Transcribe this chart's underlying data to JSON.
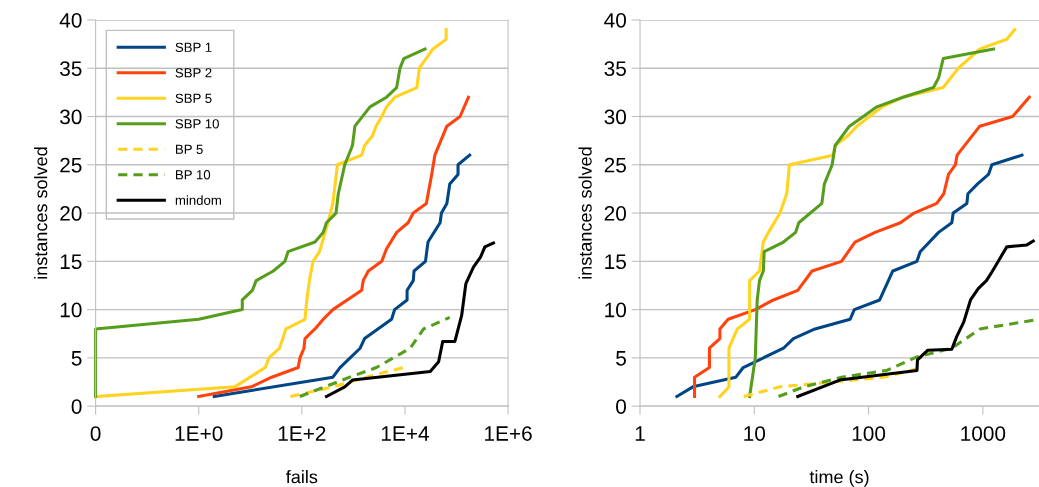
{
  "chart_data": [
    {
      "type": "line",
      "xlabel": "fails",
      "ylabel": "instances solved",
      "log": "x",
      "xlim": [
        0.01,
        1000000
      ],
      "xticks": [
        {
          "value": 0.01,
          "label": "0"
        },
        {
          "value": 1,
          "label": "1E+0"
        },
        {
          "value": 100,
          "label": "1E+2"
        },
        {
          "value": 10000,
          "label": "1E+4"
        },
        {
          "value": 1000000,
          "label": "1E+6"
        }
      ],
      "ylim": [
        0,
        40
      ],
      "yticks": [
        0,
        5,
        10,
        15,
        20,
        25,
        30,
        35,
        40
      ],
      "grid": "y",
      "legend": "top left",
      "marker": "none",
      "series": [
        {
          "name": "SBP 1",
          "color": "#004586",
          "line_style": "solid",
          "x": [
            2,
            400,
            550,
            1350,
            1650,
            5500,
            6300,
            11000,
            11000,
            14500,
            15000,
            25000,
            28000,
            48000,
            51000,
            65000,
            74000,
            107000,
            107000,
            180000
          ],
          "values": [
            1,
            3,
            4,
            6,
            7,
            9,
            10,
            11,
            12,
            13,
            14,
            15,
            17,
            19,
            20,
            21,
            23,
            24,
            25,
            26
          ]
        },
        {
          "name": "SBP 2",
          "color": "#ff420e",
          "line_style": "solid",
          "x": [
            1,
            10.5,
            26,
            85,
            92,
            110,
            115,
            180,
            260,
            400,
            1450,
            1550,
            1950,
            3550,
            4400,
            6900,
            11500,
            14500,
            26000,
            33000,
            38000,
            65000,
            117000,
            170000
          ],
          "values": [
            1,
            2,
            3,
            4,
            5,
            6,
            7,
            8,
            9,
            10,
            12,
            13,
            14,
            15,
            16.3,
            18,
            19,
            20,
            21,
            24,
            26,
            29,
            30,
            32
          ]
        },
        {
          "name": "SBP 5",
          "color": "#ffd320",
          "line_style": "solid",
          "x": [
            0.01,
            5,
            19.5,
            23,
            37,
            49,
            115,
            125,
            140,
            165,
            220,
            250,
            320,
            400,
            490,
            1450,
            1650,
            2350,
            2750,
            3550,
            4400,
            6400,
            17000,
            19000,
            35000,
            63000,
            63000
          ],
          "values": [
            1,
            2,
            4,
            5,
            6,
            8,
            9,
            11,
            13,
            15,
            16,
            17,
            19,
            21,
            25,
            26,
            27,
            28,
            29,
            30,
            31,
            32,
            33,
            35,
            37,
            38,
            39
          ]
        },
        {
          "name": "SBP 10",
          "color": "#579d1c",
          "line_style": "solid",
          "x": [
            0.01,
            0.01,
            1,
            7,
            7,
            11,
            13,
            28,
            47,
            54,
            180,
            260,
            300,
            460,
            510,
            680,
            960,
            1070,
            2100,
            4400,
            6900,
            8000,
            9500,
            24500
          ],
          "values": [
            1,
            8,
            9,
            10,
            11,
            12,
            13,
            14,
            15,
            16,
            17,
            18,
            19,
            20,
            22,
            25,
            27,
            29,
            31,
            32,
            33,
            35,
            36,
            37
          ]
        },
        {
          "name": "BP 5",
          "color": "#ffd320",
          "line_style": "dashed",
          "x": [
            60,
            400,
            1800,
            9300
          ],
          "values": [
            1,
            2,
            3,
            4
          ]
        },
        {
          "name": "BP 10",
          "color": "#579d1c",
          "line_style": "dashed",
          "x": [
            91,
            850,
            2800,
            12600,
            23000,
            74000
          ],
          "values": [
            1,
            3,
            4,
            6,
            8,
            9.2
          ]
        },
        {
          "name": "mindom",
          "color": "#000000",
          "line_style": "solid",
          "x": [
            300,
            680,
            960,
            31000,
            45000,
            54000,
            93000,
            126000,
            152000,
            213000,
            290000,
            355000,
            520000
          ],
          "values": [
            1,
            2,
            2.7,
            3.6,
            4.6,
            6.7,
            6.7,
            9.4,
            12.7,
            14.4,
            15.4,
            16.5,
            16.9
          ]
        }
      ]
    },
    {
      "type": "line",
      "xlabel": "time (s)",
      "ylabel": "instances solved",
      "log": "x",
      "xlim": [
        1,
        3100
      ],
      "xticks": [
        1,
        10,
        100,
        1000
      ],
      "ylim": [
        0,
        40
      ],
      "yticks": [
        0,
        5,
        10,
        15,
        20,
        25,
        30,
        35,
        40
      ],
      "grid": "y",
      "marker": "none",
      "series": [
        {
          "color": "#004586",
          "line_style": "solid",
          "x": [
            2.1,
            2.9,
            6.9,
            8,
            18,
            22,
            34,
            69,
            75,
            125,
            163,
            265,
            283,
            410,
            535,
            550,
            725,
            740,
            895,
            1120,
            1200,
            2200
          ],
          "values": [
            1,
            2,
            3,
            4,
            6,
            7,
            8,
            9,
            10,
            11,
            14,
            15,
            16,
            18,
            19,
            20,
            21,
            22,
            23,
            24,
            25,
            26
          ]
        },
        {
          "color": "#ff420e",
          "line_style": "solid",
          "x": [
            3,
            3,
            4.05,
            4.05,
            5,
            5,
            5.9,
            10.2,
            14.7,
            24,
            32,
            58,
            76,
            114,
            190,
            250,
            395,
            455,
            500,
            575,
            595,
            940,
            1820,
            2550
          ],
          "values": [
            1,
            3,
            4,
            6,
            7,
            8,
            9,
            10,
            11,
            12,
            14,
            15,
            17,
            18,
            19,
            20,
            21,
            22,
            24,
            25,
            26,
            29,
            30,
            32
          ]
        },
        {
          "color": "#ffd320",
          "line_style": "solid",
          "x": [
            5,
            6,
            6,
            7.1,
            9.1,
            9.1,
            11.1,
            12,
            13.3,
            16.8,
            19.2,
            20.3,
            49,
            51,
            66,
            79,
            131,
            200,
            450,
            610,
            945,
            1620,
            1900
          ],
          "values": [
            1,
            2,
            6,
            8,
            9,
            13,
            14,
            17,
            18,
            20,
            22,
            25,
            26,
            27,
            28,
            29,
            31,
            32,
            33,
            35,
            37,
            38,
            39
          ]
        },
        {
          "color": "#579d1c",
          "line_style": "solid",
          "x": [
            9.1,
            10.2,
            10.6,
            11.1,
            12,
            12.2,
            18,
            23,
            24.5,
            39,
            41,
            48,
            51,
            68,
            90,
            118,
            200,
            370,
            410,
            450,
            1240
          ],
          "values": [
            1,
            5,
            11,
            13,
            14,
            16,
            17,
            18,
            19,
            21,
            23,
            25,
            27,
            29,
            30,
            31,
            32,
            33,
            34,
            36,
            37
          ]
        },
        {
          "color": "#ffd320",
          "line_style": "dashed",
          "x": [
            8.1,
            16.8,
            135,
            273
          ],
          "values": [
            1,
            2,
            3,
            3.9
          ]
        },
        {
          "color": "#579d1c",
          "line_style": "dashed",
          "x": [
            16.3,
            27,
            58,
            144,
            265,
            535,
            945,
            3100
          ],
          "values": [
            1,
            2,
            3,
            3.7,
            5.1,
            6,
            8,
            9
          ]
        },
        {
          "color": "#000000",
          "line_style": "solid",
          "x": [
            24,
            56,
            265,
            268,
            330,
            535,
            590,
            680,
            780,
            915,
            1075,
            1200,
            1410,
            1620,
            2430,
            2760
          ],
          "values": [
            1,
            2.7,
            3.7,
            4.8,
            5.8,
            5.9,
            7.2,
            8.7,
            11,
            12.2,
            13,
            13.9,
            15.3,
            16.5,
            16.7,
            17.1
          ]
        }
      ]
    }
  ]
}
